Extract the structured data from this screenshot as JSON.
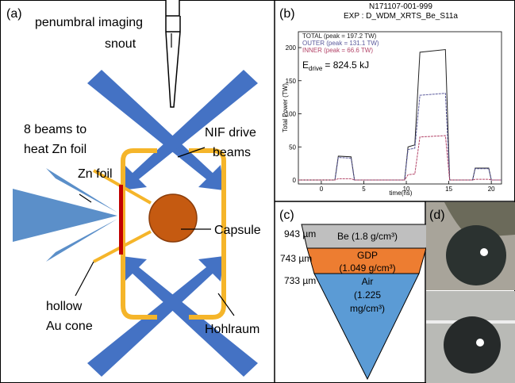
{
  "panel_a": {
    "label": "(a)",
    "snout": [
      "penumbral imaging",
      "snout"
    ],
    "drive_beams": [
      "NIF drive",
      "beams"
    ],
    "heating_beams": [
      "8 beams to",
      "heat Zn foil"
    ],
    "foil": "Zn foil",
    "capsule": "Capsule",
    "cone": [
      "hollow",
      "Au cone"
    ],
    "hohlraum": "Hohlraum"
  },
  "panel_b": {
    "label": "(b)"
  },
  "chart_data": {
    "type": "line",
    "title": "N171107-001-999",
    "subtitle": "EXP : D_WDM_XRTS_Be_S11a",
    "annotation": {
      "symbol": "E",
      "subscript": "drive",
      "text": "= 824.5 kJ"
    },
    "x_label": "time(ns)",
    "y_label": "Total Power (TW)",
    "x": [
      -2.7,
      1.6,
      2.0,
      3.5,
      3.9,
      9.8,
      10.2,
      11.0,
      11.6,
      14.6,
      15.1,
      17.8,
      18.1,
      19.7,
      20.0,
      21.2
    ],
    "series": [
      {
        "name": "TOTAL (peak = 197.2 TW)",
        "color": "#222222",
        "values": [
          0,
          0,
          36,
          35,
          0,
          0,
          50,
          53,
          193,
          197,
          0,
          0,
          18,
          18,
          0,
          0
        ]
      },
      {
        "name": "OUTER (peak = 131.1 TW)",
        "color": "#5b5a9c",
        "values": [
          0,
          0,
          34,
          33,
          0,
          0,
          46,
          48,
          128,
          131,
          0,
          0,
          17,
          17,
          0,
          0
        ]
      },
      {
        "name": "INNER (peak = 66.6 TW)",
        "color": "#b34468",
        "values": [
          0,
          0,
          2,
          2,
          0,
          0,
          8,
          9,
          65,
          67,
          0,
          0,
          1,
          1,
          0,
          0
        ]
      }
    ],
    "xlim": [
      -2.7,
      21.2
    ],
    "ylim": [
      -6,
      224
    ],
    "xticks": [
      0,
      5,
      10,
      15,
      20
    ],
    "yticks": [
      0,
      50,
      100,
      150,
      200
    ],
    "grid": false
  },
  "panel_c": {
    "label": "(c)",
    "depths": [
      "943 µm",
      "743 µm",
      "733 µm"
    ],
    "layers": [
      [
        "Be (1.8 g/cm³)"
      ],
      [
        "GDP",
        "(1.049 g/cm³)"
      ],
      [
        "Air",
        "(1.225",
        "mg/cm³)"
      ]
    ]
  },
  "panel_d": {
    "label": "(d)"
  }
}
